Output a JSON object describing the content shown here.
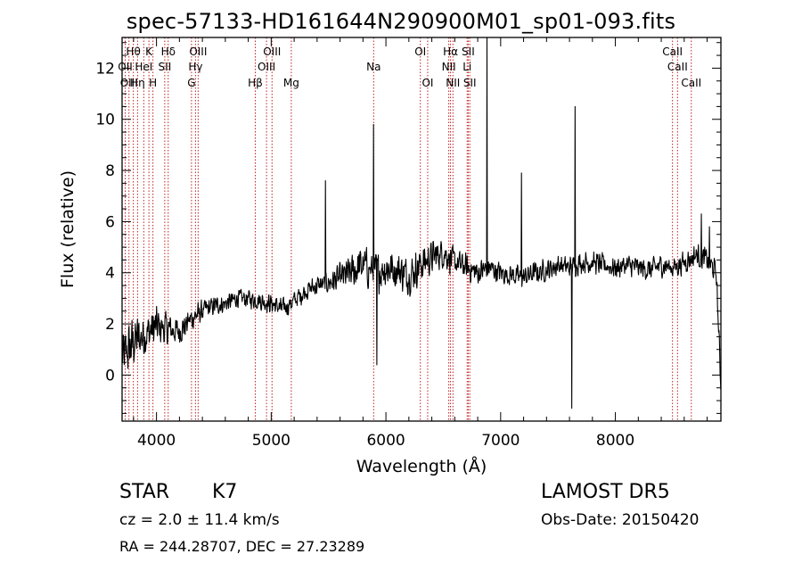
{
  "page": {
    "title": "spec-57133-HD161644N290900M01_sp01-093.fits",
    "object_class": "STAR",
    "subclass": "K7",
    "survey": "LAMOST DR5",
    "obs_date": "Obs-Date: 20150420",
    "redshift": "cz = 2.0 ± 11.4 km/s",
    "coords": "RA = 244.28707, DEC =  27.23289"
  },
  "colors": {
    "spectrum": "#000000",
    "line_markers": "#c02020",
    "axes": "#000000"
  },
  "chart_data": {
    "type": "line",
    "xlabel": "Wavelength (Å)",
    "ylabel": "Flux (relative)",
    "xlim": [
      3700,
      8920
    ],
    "ylim": [
      -1.8,
      13.2
    ],
    "xticks": [
      4000,
      5000,
      6000,
      7000,
      8000
    ],
    "yticks": [
      0,
      2,
      4,
      6,
      8,
      10,
      12
    ],
    "tick_labels_x": [
      "4000",
      "5000",
      "6000",
      "7000",
      "8000"
    ],
    "tick_labels_y": [
      "0",
      "2",
      "4",
      "6",
      "8",
      "10",
      "12"
    ],
    "grid": false,
    "spectral_lines": [
      {
        "label": "Hθ",
        "wavelength": 3798,
        "row": 0
      },
      {
        "label": "OII",
        "wavelength": 3727,
        "row": 1
      },
      {
        "label": "OIII",
        "wavelength": 3760,
        "row": 2
      },
      {
        "label": "Hη",
        "wavelength": 3835,
        "row": 2
      },
      {
        "label": "K",
        "wavelength": 3934,
        "row": 0
      },
      {
        "label": "HeI",
        "wavelength": 3889,
        "row": 1
      },
      {
        "label": "H",
        "wavelength": 3969,
        "row": 2
      },
      {
        "label": "Hδ",
        "wavelength": 4102,
        "row": 0
      },
      {
        "label": "SII",
        "wavelength": 4072,
        "row": 1
      },
      {
        "label": "OIII",
        "wavelength": 4363,
        "row": 0
      },
      {
        "label": "Hγ",
        "wavelength": 4340,
        "row": 1
      },
      {
        "label": "G",
        "wavelength": 4305,
        "row": 2
      },
      {
        "label": "Hβ",
        "wavelength": 4861,
        "row": 2
      },
      {
        "label": "OIII",
        "wavelength": 5007,
        "row": 0
      },
      {
        "label": "OIII",
        "wavelength": 4959,
        "row": 1
      },
      {
        "label": "Mg",
        "wavelength": 5175,
        "row": 2
      },
      {
        "label": "Na",
        "wavelength": 5893,
        "row": 1
      },
      {
        "label": "OI",
        "wavelength": 6300,
        "row": 0
      },
      {
        "label": "OI",
        "wavelength": 6364,
        "row": 2
      },
      {
        "label": "Hα",
        "wavelength": 6563,
        "row": 0
      },
      {
        "label": "NII",
        "wavelength": 6548,
        "row": 1
      },
      {
        "label": "NII",
        "wavelength": 6584,
        "row": 2
      },
      {
        "label": "SII",
        "wavelength": 6717,
        "row": 0
      },
      {
        "label": "Li",
        "wavelength": 6708,
        "row": 1
      },
      {
        "label": "SII",
        "wavelength": 6731,
        "row": 2
      },
      {
        "label": "CaII",
        "wavelength": 8498,
        "row": 0
      },
      {
        "label": "CaII",
        "wavelength": 8542,
        "row": 1
      },
      {
        "label": "CaII",
        "wavelength": 8662,
        "row": 2
      }
    ],
    "series": [
      {
        "continuum_x": [
          3700,
          3800,
          3900,
          4000,
          4100,
          4200,
          4300,
          4400,
          4500,
          4600,
          4700,
          4800,
          4900,
          5000,
          5100,
          5200,
          5300,
          5400,
          5500,
          5600,
          5700,
          5800,
          5900,
          6000,
          6100,
          6200,
          6300,
          6400,
          6500,
          6600,
          6700,
          6800,
          6900,
          7000,
          7100,
          7200,
          7300,
          7400,
          7500,
          7600,
          7700,
          7800,
          7900,
          8000,
          8100,
          8200,
          8300,
          8400,
          8500,
          8600,
          8700,
          8800,
          8880,
          8920
        ],
        "continuum_y": [
          0.6,
          1.3,
          1.6,
          1.9,
          1.8,
          1.7,
          2.2,
          2.5,
          2.7,
          2.8,
          3.0,
          3.0,
          2.9,
          2.8,
          2.6,
          2.9,
          3.3,
          3.5,
          3.6,
          3.8,
          4.0,
          4.3,
          4.0,
          4.2,
          4.1,
          3.9,
          4.3,
          4.6,
          4.8,
          4.4,
          4.2,
          4.0,
          4.2,
          4.0,
          3.9,
          3.8,
          4.0,
          4.1,
          4.3,
          4.2,
          4.4,
          4.4,
          4.3,
          4.2,
          4.3,
          4.2,
          4.1,
          4.3,
          4.2,
          4.4,
          4.7,
          4.5,
          4.0,
          -0.5
        ],
        "noise": [
          [
            3700,
            1.3
          ],
          [
            4000,
            0.95
          ],
          [
            4200,
            0.6
          ],
          [
            4600,
            0.4
          ],
          [
            5500,
            0.5
          ],
          [
            5800,
            0.95
          ],
          [
            6300,
            0.85
          ],
          [
            6600,
            0.65
          ],
          [
            7000,
            0.5
          ],
          [
            8000,
            0.5
          ],
          [
            8920,
            0.55
          ]
        ],
        "features": [
          {
            "x": 5473,
            "y": 7.6
          },
          {
            "x": 5893,
            "y": 9.8
          },
          {
            "x": 5920,
            "y": 0.4
          },
          {
            "x": 6880,
            "y": 13.2
          },
          {
            "x": 7180,
            "y": 7.9
          },
          {
            "x": 7620,
            "y": -1.3
          },
          {
            "x": 7650,
            "y": 10.5
          },
          {
            "x": 8750,
            "y": 6.3
          },
          {
            "x": 8820,
            "y": 5.8
          }
        ]
      }
    ]
  }
}
